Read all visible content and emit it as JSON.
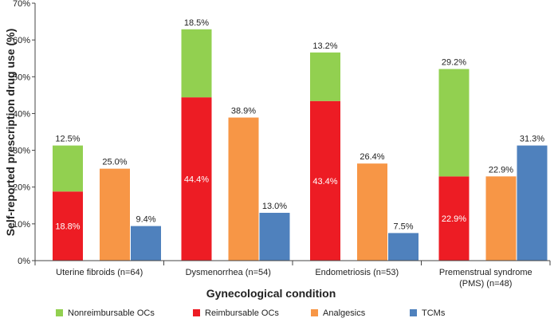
{
  "chart_data": {
    "type": "bar",
    "stacked_first_group": true,
    "ylabel": "Self-reported prescription drug use (%)",
    "xlabel": "Gynecological condition",
    "ylim": [
      0,
      70
    ],
    "yticks": [
      "0%",
      "10%",
      "20%",
      "30%",
      "40%",
      "50%",
      "60%",
      "70%"
    ],
    "categories": [
      [
        "Uterine fibroids (n=64)"
      ],
      [
        "Dysmenorrhea (n=54)"
      ],
      [
        "Endometriosis (n=53)"
      ],
      [
        "Premenstrual syndrome",
        "(PMS) (n=48)"
      ]
    ],
    "series": [
      {
        "name": "Nonreimbursable OCs",
        "color": "#92d050",
        "values": [
          12.5,
          18.5,
          13.2,
          29.2
        ],
        "labels": [
          "12.5%",
          "18.5%",
          "13.2%",
          "29.2%"
        ]
      },
      {
        "name": "Reimbursable OCs",
        "color": "#ed1c24",
        "values": [
          18.8,
          44.4,
          43.4,
          22.9
        ],
        "labels": [
          "18.8%",
          "44.4%",
          "43.4%",
          "22.9%"
        ]
      },
      {
        "name": "Analgesics",
        "color": "#f79646",
        "values": [
          25.0,
          38.9,
          26.4,
          22.9
        ],
        "labels": [
          "25.0%",
          "38.9%",
          "26.4%",
          "22.9%"
        ]
      },
      {
        "name": "TCMs",
        "color": "#4f81bd",
        "values": [
          9.4,
          13.0,
          7.5,
          31.3
        ],
        "labels": [
          "9.4%",
          "13.0%",
          "7.5%",
          "31.3%"
        ]
      }
    ]
  }
}
